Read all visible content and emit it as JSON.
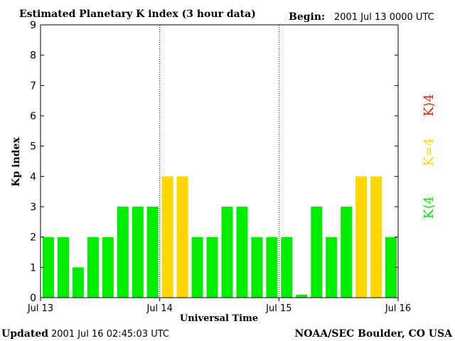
{
  "header": {
    "title": "Estimated Planetary K index (3 hour data)",
    "begin_label": "Begin:",
    "begin_value": "2001 Jul 13 0000 UTC"
  },
  "footer": {
    "updated_label": "Updated",
    "updated_value": "2001 Jul 16 02:45:03 UTC",
    "credit": "NOAA/SEC Boulder, CO USA"
  },
  "legend": {
    "high": "K⟩4",
    "equal": "K=4",
    "low": "K⟨4"
  },
  "colors": {
    "low": "#00ee00",
    "equal": "#ffd700",
    "high": "#ee2200",
    "frame": "#000000"
  },
  "chart_data": {
    "type": "bar",
    "title": "Estimated Planetary K index (3 hour data)",
    "xlabel": "Universal Time",
    "ylabel": "Kp index",
    "ylim": [
      0,
      9
    ],
    "yticks": [
      "0",
      "1",
      "2",
      "3",
      "4",
      "5",
      "6",
      "7",
      "8",
      "9"
    ],
    "day_labels": [
      "Jul 13",
      "Jul 14",
      "Jul 15",
      "Jul 16"
    ],
    "slots_per_day": 8,
    "values": [
      2,
      2,
      1,
      2,
      2,
      3,
      3,
      3,
      4,
      4,
      2,
      2,
      3,
      3,
      2,
      2,
      2,
      0.1,
      3,
      2,
      3,
      4,
      4,
      2
    ],
    "thresholds": {
      "equal": 4
    },
    "grid": false
  }
}
